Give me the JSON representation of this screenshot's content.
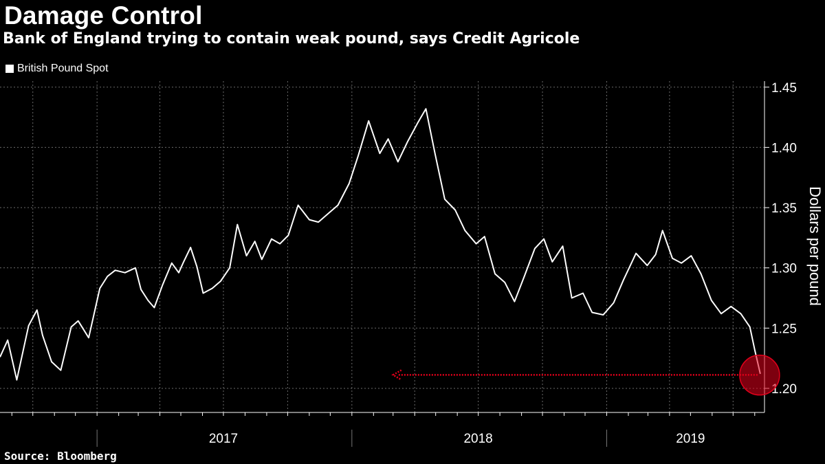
{
  "header": {
    "title": "Damage Control",
    "subtitle": "Bank of England trying to contain weak pound, says Credit Agricole"
  },
  "legend": {
    "label": "British Pound Spot"
  },
  "footer": {
    "source": "Source: Bloomberg"
  },
  "colors": {
    "background": "#000000",
    "line": "#ffffff",
    "annotation": "#e3001b",
    "grid": "#6b6b6b"
  },
  "chart_data": {
    "type": "line",
    "ylabel": "Dollars per pound",
    "ylim": [
      1.18,
      1.455
    ],
    "yticks": [
      1.2,
      1.25,
      1.3,
      1.35,
      1.4,
      1.45
    ],
    "ytick_labels": [
      "1.20",
      "1.25",
      "1.30",
      "1.35",
      "1.40",
      "1.45"
    ],
    "xlim": [
      "2016-08-15",
      "2019-08-15"
    ],
    "year_labels": [
      {
        "label": "2017",
        "at": "2017-07-01"
      },
      {
        "label": "2018",
        "at": "2018-07-01"
      },
      {
        "label": "2019",
        "at": "2019-05-01"
      }
    ],
    "year_boundaries": [
      "2017-01-01",
      "2018-01-01",
      "2019-01-01"
    ],
    "series": [
      {
        "name": "British Pound Spot",
        "x": [
          "2016-08-15",
          "2016-08-26",
          "2016-09-08",
          "2016-09-25",
          "2016-10-07",
          "2016-10-15",
          "2016-10-28",
          "2016-11-10",
          "2016-11-25",
          "2016-12-05",
          "2016-12-20",
          "2017-01-05",
          "2017-01-16",
          "2017-01-27",
          "2017-02-10",
          "2017-02-25",
          "2017-03-05",
          "2017-03-15",
          "2017-03-24",
          "2017-04-05",
          "2017-04-18",
          "2017-04-28",
          "2017-05-05",
          "2017-05-15",
          "2017-05-24",
          "2017-06-02",
          "2017-06-15",
          "2017-06-27",
          "2017-07-10",
          "2017-07-21",
          "2017-08-03",
          "2017-08-15",
          "2017-08-25",
          "2017-09-08",
          "2017-09-20",
          "2017-10-02",
          "2017-10-16",
          "2017-11-01",
          "2017-11-14",
          "2017-11-28",
          "2017-12-12",
          "2017-12-28",
          "2018-01-10",
          "2018-01-25",
          "2018-02-10",
          "2018-02-22",
          "2018-03-08",
          "2018-03-22",
          "2018-04-05",
          "2018-04-17",
          "2018-04-30",
          "2018-05-14",
          "2018-05-29",
          "2018-06-12",
          "2018-06-28",
          "2018-07-10",
          "2018-07-25",
          "2018-08-08",
          "2018-08-22",
          "2018-09-05",
          "2018-09-20",
          "2018-10-03",
          "2018-10-15",
          "2018-10-30",
          "2018-11-12",
          "2018-11-28",
          "2018-12-11",
          "2018-12-27",
          "2019-01-11",
          "2019-01-25",
          "2019-02-12",
          "2019-02-28",
          "2019-03-12",
          "2019-03-22",
          "2019-04-05",
          "2019-04-18",
          "2019-05-02",
          "2019-05-16",
          "2019-05-31",
          "2019-06-14",
          "2019-06-28",
          "2019-07-12",
          "2019-07-25",
          "2019-08-01",
          "2019-08-09"
        ],
        "y": [
          1.226,
          1.24,
          1.207,
          1.252,
          1.265,
          1.244,
          1.222,
          1.215,
          1.251,
          1.256,
          1.242,
          1.283,
          1.293,
          1.298,
          1.296,
          1.3,
          1.282,
          1.273,
          1.267,
          1.286,
          1.304,
          1.296,
          1.305,
          1.317,
          1.301,
          1.279,
          1.283,
          1.289,
          1.3,
          1.336,
          1.31,
          1.322,
          1.307,
          1.324,
          1.32,
          1.327,
          1.352,
          1.34,
          1.338,
          1.345,
          1.352,
          1.37,
          1.393,
          1.422,
          1.395,
          1.407,
          1.388,
          1.405,
          1.42,
          1.432,
          1.395,
          1.357,
          1.348,
          1.331,
          1.32,
          1.326,
          1.295,
          1.288,
          1.272,
          1.293,
          1.316,
          1.324,
          1.305,
          1.318,
          1.275,
          1.279,
          1.263,
          1.261,
          1.271,
          1.29,
          1.312,
          1.302,
          1.311,
          1.331,
          1.308,
          1.304,
          1.31,
          1.295,
          1.273,
          1.262,
          1.268,
          1.262,
          1.251,
          1.232,
          1.212
        ]
      }
    ],
    "annotation": {
      "type": "arrow",
      "from": "2019-08-05",
      "to": "2018-03-01",
      "y": 1.21,
      "circle_at": {
        "x": "2019-08-08",
        "y": 1.211
      }
    }
  }
}
